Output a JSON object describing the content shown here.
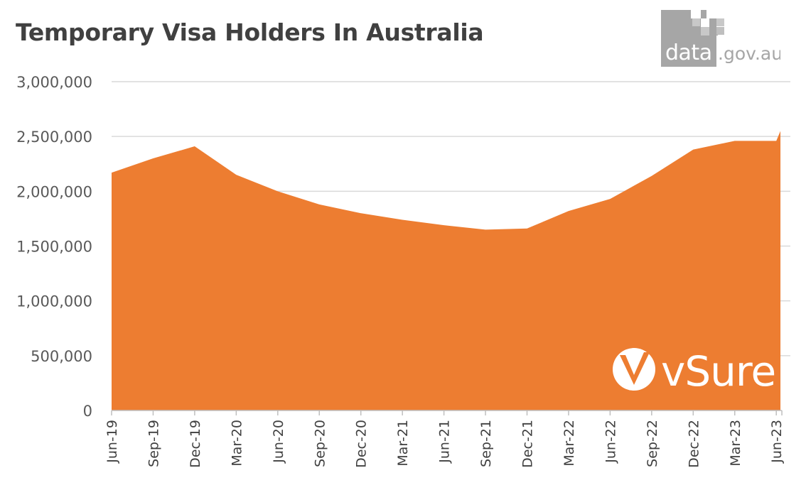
{
  "chart_data": {
    "type": "area",
    "title": "Temporary Visa Holders In Australia",
    "xlabel": "",
    "ylabel": "",
    "categories": [
      "Jun-19",
      "Sep-19",
      "Dec-19",
      "Mar-20",
      "Jun-20",
      "Sep-20",
      "Dec-20",
      "Mar-21",
      "Jun-21",
      "Sep-21",
      "Dec-21",
      "Mar-22",
      "Jun-22",
      "Sep-22",
      "Dec-22",
      "Mar-23",
      "Jun-23"
    ],
    "x_label_positions": [
      0,
      1,
      2,
      3,
      4,
      5,
      6,
      7,
      8,
      9,
      10,
      11,
      12,
      13,
      14,
      15,
      16
    ],
    "x_last": 16.1,
    "x": [
      0,
      1,
      2,
      3,
      4,
      5,
      6,
      7,
      8,
      9,
      10,
      11,
      12,
      13,
      14,
      15,
      16,
      16.1
    ],
    "values": [
      2170000,
      2300000,
      2410000,
      2150000,
      2000000,
      1880000,
      1800000,
      1740000,
      1690000,
      1650000,
      1660000,
      1820000,
      1930000,
      2140000,
      2380000,
      2460000,
      2460000,
      2550000
    ],
    "ylim": [
      0,
      3000000
    ],
    "yticks": [
      0,
      500000,
      1000000,
      1500000,
      2000000,
      2500000,
      3000000
    ],
    "ytick_labels": [
      "0",
      "500,000",
      "1,000,000",
      "1,500,000",
      "2,000,000",
      "2,500,000",
      "3,000,000"
    ],
    "grid": true,
    "legend": "none",
    "colors": {
      "area": "#ed7d31",
      "grid": "#d9d9d9",
      "title": "#404040",
      "axis_text": "#595959"
    }
  },
  "logos": {
    "datagov": {
      "text": "data.gov.au",
      "color": "#a6a6a6"
    },
    "vsure": {
      "text": "vSure",
      "color": "#ffffff"
    }
  }
}
